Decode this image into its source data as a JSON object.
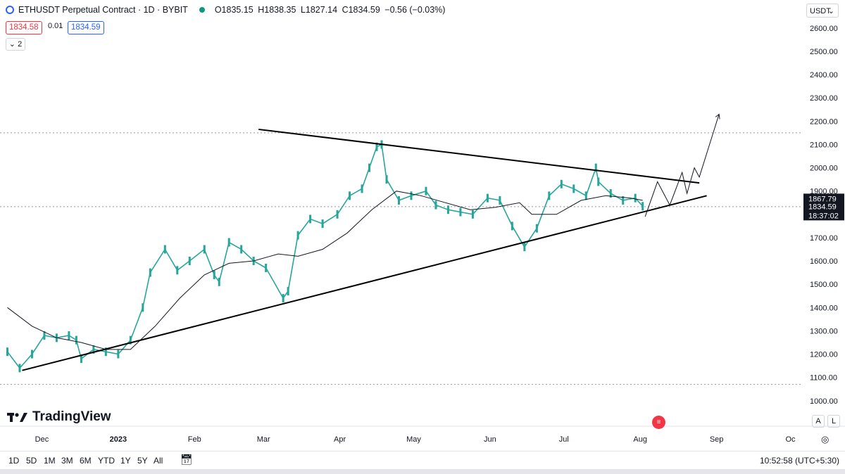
{
  "header": {
    "symbol_title": "ETHUSDT Perpetual Contract · 1D · BYBIT",
    "open": "O1835.15",
    "high": "H1838.35",
    "low": "L1827.14",
    "close": "C1834.59",
    "change": "−0.56 (−0.03%)"
  },
  "prices": {
    "bid": "1834.58",
    "spread": "0.01",
    "ask": "1834.59"
  },
  "indicator_toggle": "2",
  "currency": "USDT",
  "brand": "TradingView",
  "scale_buttons": [
    "A",
    "L"
  ],
  "timeframes": [
    "1D",
    "5D",
    "1M",
    "3M",
    "6M",
    "YTD",
    "1Y",
    "5Y",
    "All"
  ],
  "clock": "10:52:58 (UTC+5:30)",
  "colors": {
    "up": "#26a69a",
    "down": "#131722",
    "bid": "#f23645",
    "ask": "#2962ff"
  },
  "chart_data": {
    "type": "line",
    "title": "ETHUSDT Perpetual Contract · 1D · BYBIT",
    "y_ticks": [
      1000,
      1100,
      1200,
      1300,
      1400,
      1500,
      1600,
      1700,
      1800,
      1900,
      2000,
      2100,
      2200,
      2300,
      2400,
      2500,
      2600
    ],
    "y_tick_labels": [
      "1000.00",
      "1100.00",
      "1200.00",
      "1300.00",
      "1400.00",
      "1500.00",
      "1600.00",
      "1700.00",
      "1800.00",
      "1900.00",
      "2000.00",
      "2100.00",
      "2200.00",
      "2300.00",
      "2400.00",
      "2500.00",
      "2600.00"
    ],
    "ylim": [
      960,
      2660
    ],
    "x_ticks": [
      "Dec",
      "2023",
      "Feb",
      "Mar",
      "Apr",
      "May",
      "Jun",
      "Jul",
      "Aug",
      "Sep",
      "Oc"
    ],
    "x_tick_days": [
      0,
      31,
      62,
      90,
      121,
      151,
      182,
      212,
      243,
      274,
      304
    ],
    "xlim": [
      -17,
      309
    ],
    "series": [
      {
        "values": [
          {
            "date": "2022-11-17",
            "close": 1210
          },
          {
            "date": "2022-11-22",
            "close": 1140
          },
          {
            "date": "2022-11-27",
            "close": 1200
          },
          {
            "date": "2022-12-02",
            "close": 1280
          },
          {
            "date": "2022-12-07",
            "close": 1270
          },
          {
            "date": "2022-12-12",
            "close": 1280
          },
          {
            "date": "2022-12-15",
            "close": 1260
          },
          {
            "date": "2022-12-17",
            "close": 1180
          },
          {
            "date": "2022-12-22",
            "close": 1220
          },
          {
            "date": "2022-12-27",
            "close": 1210
          },
          {
            "date": "2023-01-01",
            "close": 1200
          },
          {
            "date": "2023-01-06",
            "close": 1260
          },
          {
            "date": "2023-01-11",
            "close": 1400
          },
          {
            "date": "2023-01-14",
            "close": 1550
          },
          {
            "date": "2023-01-20",
            "close": 1650
          },
          {
            "date": "2023-01-25",
            "close": 1560
          },
          {
            "date": "2023-01-30",
            "close": 1600
          },
          {
            "date": "2023-02-05",
            "close": 1650
          },
          {
            "date": "2023-02-09",
            "close": 1540
          },
          {
            "date": "2023-02-11",
            "close": 1510
          },
          {
            "date": "2023-02-15",
            "close": 1680
          },
          {
            "date": "2023-02-20",
            "close": 1650
          },
          {
            "date": "2023-02-25",
            "close": 1600
          },
          {
            "date": "2023-03-02",
            "close": 1570
          },
          {
            "date": "2023-03-09",
            "close": 1440
          },
          {
            "date": "2023-03-11",
            "close": 1470
          },
          {
            "date": "2023-03-15",
            "close": 1710
          },
          {
            "date": "2023-03-20",
            "close": 1780
          },
          {
            "date": "2023-03-25",
            "close": 1760
          },
          {
            "date": "2023-03-31",
            "close": 1800
          },
          {
            "date": "2023-04-05",
            "close": 1880
          },
          {
            "date": "2023-04-10",
            "close": 1910
          },
          {
            "date": "2023-04-13",
            "close": 2000
          },
          {
            "date": "2023-04-16",
            "close": 2090
          },
          {
            "date": "2023-04-18",
            "close": 2100
          },
          {
            "date": "2023-04-20",
            "close": 1950
          },
          {
            "date": "2023-04-25",
            "close": 1860
          },
          {
            "date": "2023-04-30",
            "close": 1880
          },
          {
            "date": "2023-05-06",
            "close": 1900
          },
          {
            "date": "2023-05-10",
            "close": 1840
          },
          {
            "date": "2023-05-15",
            "close": 1820
          },
          {
            "date": "2023-05-20",
            "close": 1810
          },
          {
            "date": "2023-05-25",
            "close": 1800
          },
          {
            "date": "2023-05-31",
            "close": 1870
          },
          {
            "date": "2023-06-05",
            "close": 1860
          },
          {
            "date": "2023-06-10",
            "close": 1750
          },
          {
            "date": "2023-06-15",
            "close": 1660
          },
          {
            "date": "2023-06-20",
            "close": 1740
          },
          {
            "date": "2023-06-25",
            "close": 1880
          },
          {
            "date": "2023-06-30",
            "close": 1930
          },
          {
            "date": "2023-07-05",
            "close": 1910
          },
          {
            "date": "2023-07-10",
            "close": 1880
          },
          {
            "date": "2023-07-14",
            "close": 2000
          },
          {
            "date": "2023-07-15",
            "close": 1940
          },
          {
            "date": "2023-07-20",
            "close": 1890
          },
          {
            "date": "2023-07-25",
            "close": 1860
          },
          {
            "date": "2023-07-30",
            "close": 1870
          },
          {
            "date": "2023-08-02",
            "close": 1835
          }
        ]
      },
      {
        "name": "moving average",
        "values": [
          {
            "date": "2022-11-17",
            "value": 1400
          },
          {
            "date": "2022-11-27",
            "value": 1320
          },
          {
            "date": "2022-12-07",
            "value": 1270
          },
          {
            "date": "2022-12-17",
            "value": 1250
          },
          {
            "date": "2022-12-27",
            "value": 1220
          },
          {
            "date": "2023-01-06",
            "value": 1220
          },
          {
            "date": "2023-01-16",
            "value": 1320
          },
          {
            "date": "2023-01-26",
            "value": 1440
          },
          {
            "date": "2023-02-05",
            "value": 1540
          },
          {
            "date": "2023-02-15",
            "value": 1590
          },
          {
            "date": "2023-02-25",
            "value": 1600
          },
          {
            "date": "2023-03-07",
            "value": 1630
          },
          {
            "date": "2023-03-15",
            "value": 1620
          },
          {
            "date": "2023-03-25",
            "value": 1650
          },
          {
            "date": "2023-04-04",
            "value": 1720
          },
          {
            "date": "2023-04-14",
            "value": 1820
          },
          {
            "date": "2023-04-24",
            "value": 1900
          },
          {
            "date": "2023-05-04",
            "value": 1880
          },
          {
            "date": "2023-05-14",
            "value": 1850
          },
          {
            "date": "2023-05-24",
            "value": 1820
          },
          {
            "date": "2023-06-03",
            "value": 1830
          },
          {
            "date": "2023-06-13",
            "value": 1850
          },
          {
            "date": "2023-06-18",
            "value": 1800
          },
          {
            "date": "2023-06-28",
            "value": 1800
          },
          {
            "date": "2023-07-08",
            "value": 1860
          },
          {
            "date": "2023-07-18",
            "value": 1880
          },
          {
            "date": "2023-07-28",
            "value": 1870
          },
          {
            "date": "2023-08-02",
            "value": 1860
          }
        ]
      }
    ],
    "trendlines": [
      {
        "name": "upper",
        "from": {
          "date": "2023-02-27",
          "value": 2165
        },
        "to": {
          "date": "2023-08-25",
          "value": 1935
        }
      },
      {
        "name": "lower",
        "from": {
          "date": "2022-11-23",
          "value": 1130
        },
        "to": {
          "date": "2023-08-28",
          "value": 1880
        }
      }
    ],
    "projection": [
      {
        "date": "2023-08-03",
        "value": 1790
      },
      {
        "date": "2023-08-08",
        "value": 1940
      },
      {
        "date": "2023-08-13",
        "value": 1840
      },
      {
        "date": "2023-08-18",
        "value": 1980
      },
      {
        "date": "2023-08-20",
        "value": 1890
      },
      {
        "date": "2023-08-23",
        "value": 2000
      },
      {
        "date": "2023-08-25",
        "value": 1960
      },
      {
        "date": "2023-09-02",
        "value": 2230
      }
    ],
    "horizontal_lines": [
      2150,
      1833,
      1070
    ],
    "price_labels": [
      "1867.79",
      "1834.59",
      "18:37:02"
    ],
    "grid": false,
    "legend": "none"
  }
}
